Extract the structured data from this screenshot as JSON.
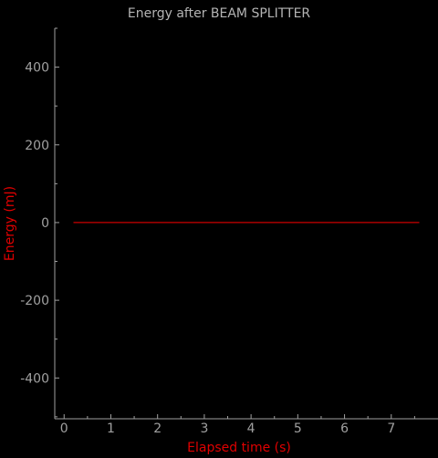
{
  "colors": {
    "background": "#000000",
    "axis": "#a0a0a0",
    "tick_text": "#a0a0a0",
    "title": "#b4b4b4",
    "accent": "#e00000",
    "series_line": "#cc0000"
  },
  "chart_data": {
    "type": "line",
    "title": "Energy after BEAM SPLITTER",
    "xlabel": "Elapsed time (s)",
    "ylabel": "Energy (mJ)",
    "xlim": [
      -0.2,
      8.0
    ],
    "ylim": [
      -505,
      500
    ],
    "xticks": [
      "0",
      "1",
      "2",
      "3",
      "4",
      "5",
      "6",
      "7"
    ],
    "yticks": [
      "400",
      "200",
      "0",
      "-200",
      "-400"
    ],
    "grid": false,
    "series": [
      {
        "x": [
          0.2,
          7.6
        ],
        "y": [
          0,
          0
        ]
      }
    ]
  }
}
